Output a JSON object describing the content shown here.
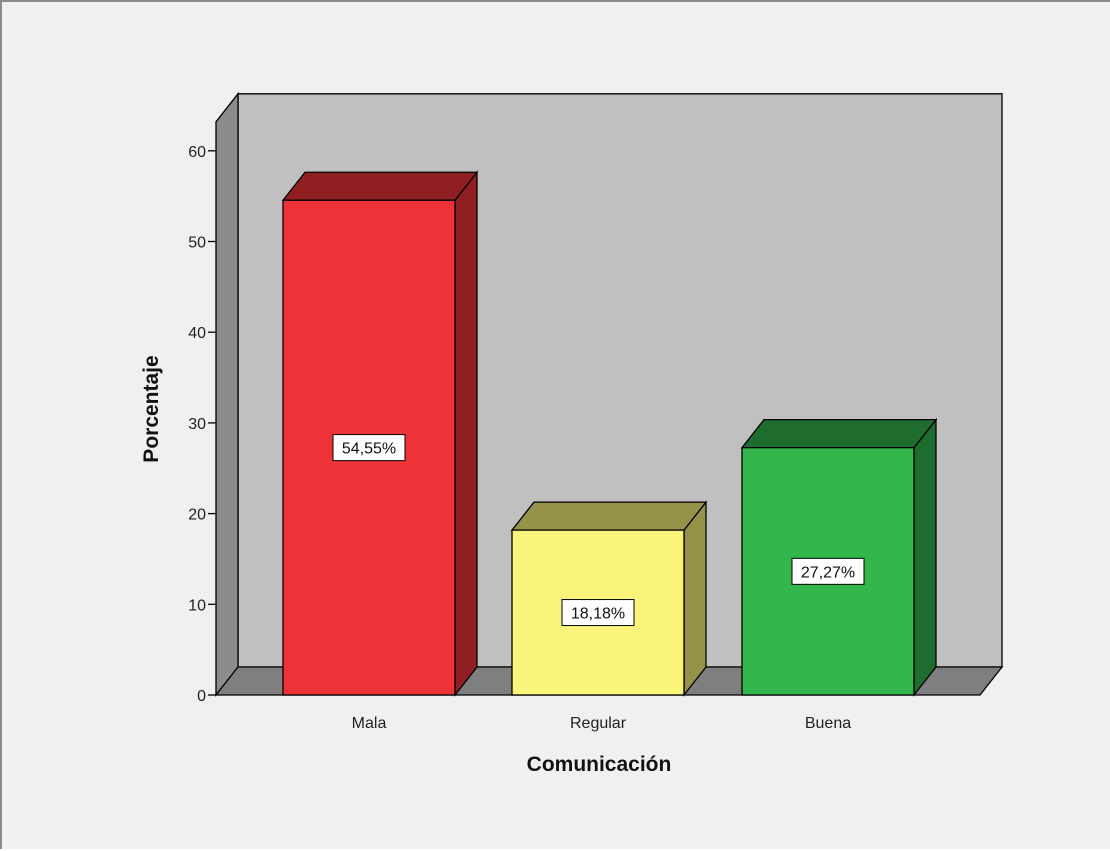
{
  "chart_data": {
    "type": "bar",
    "style": "3d",
    "categories": [
      "Mala",
      "Regular",
      "Buena"
    ],
    "values": [
      54.55,
      18.18,
      27.27
    ],
    "data_labels": [
      "54,55%",
      "18,18%",
      "27,27%"
    ],
    "colors": [
      "#ee3338",
      "#fbf47a",
      "#33b64c"
    ],
    "xlabel": "Comunicación",
    "ylabel": "Porcentaje",
    "ylim": [
      0,
      60
    ],
    "yticks": [
      0,
      10,
      20,
      30,
      40,
      50,
      60
    ],
    "grid": false,
    "legend": "none"
  },
  "colors": {
    "frame_background": "#f0f0f0",
    "plot_background": "#c0c0c0",
    "side_wall": "#8c8c8c",
    "floor": "#7f7f7f"
  }
}
